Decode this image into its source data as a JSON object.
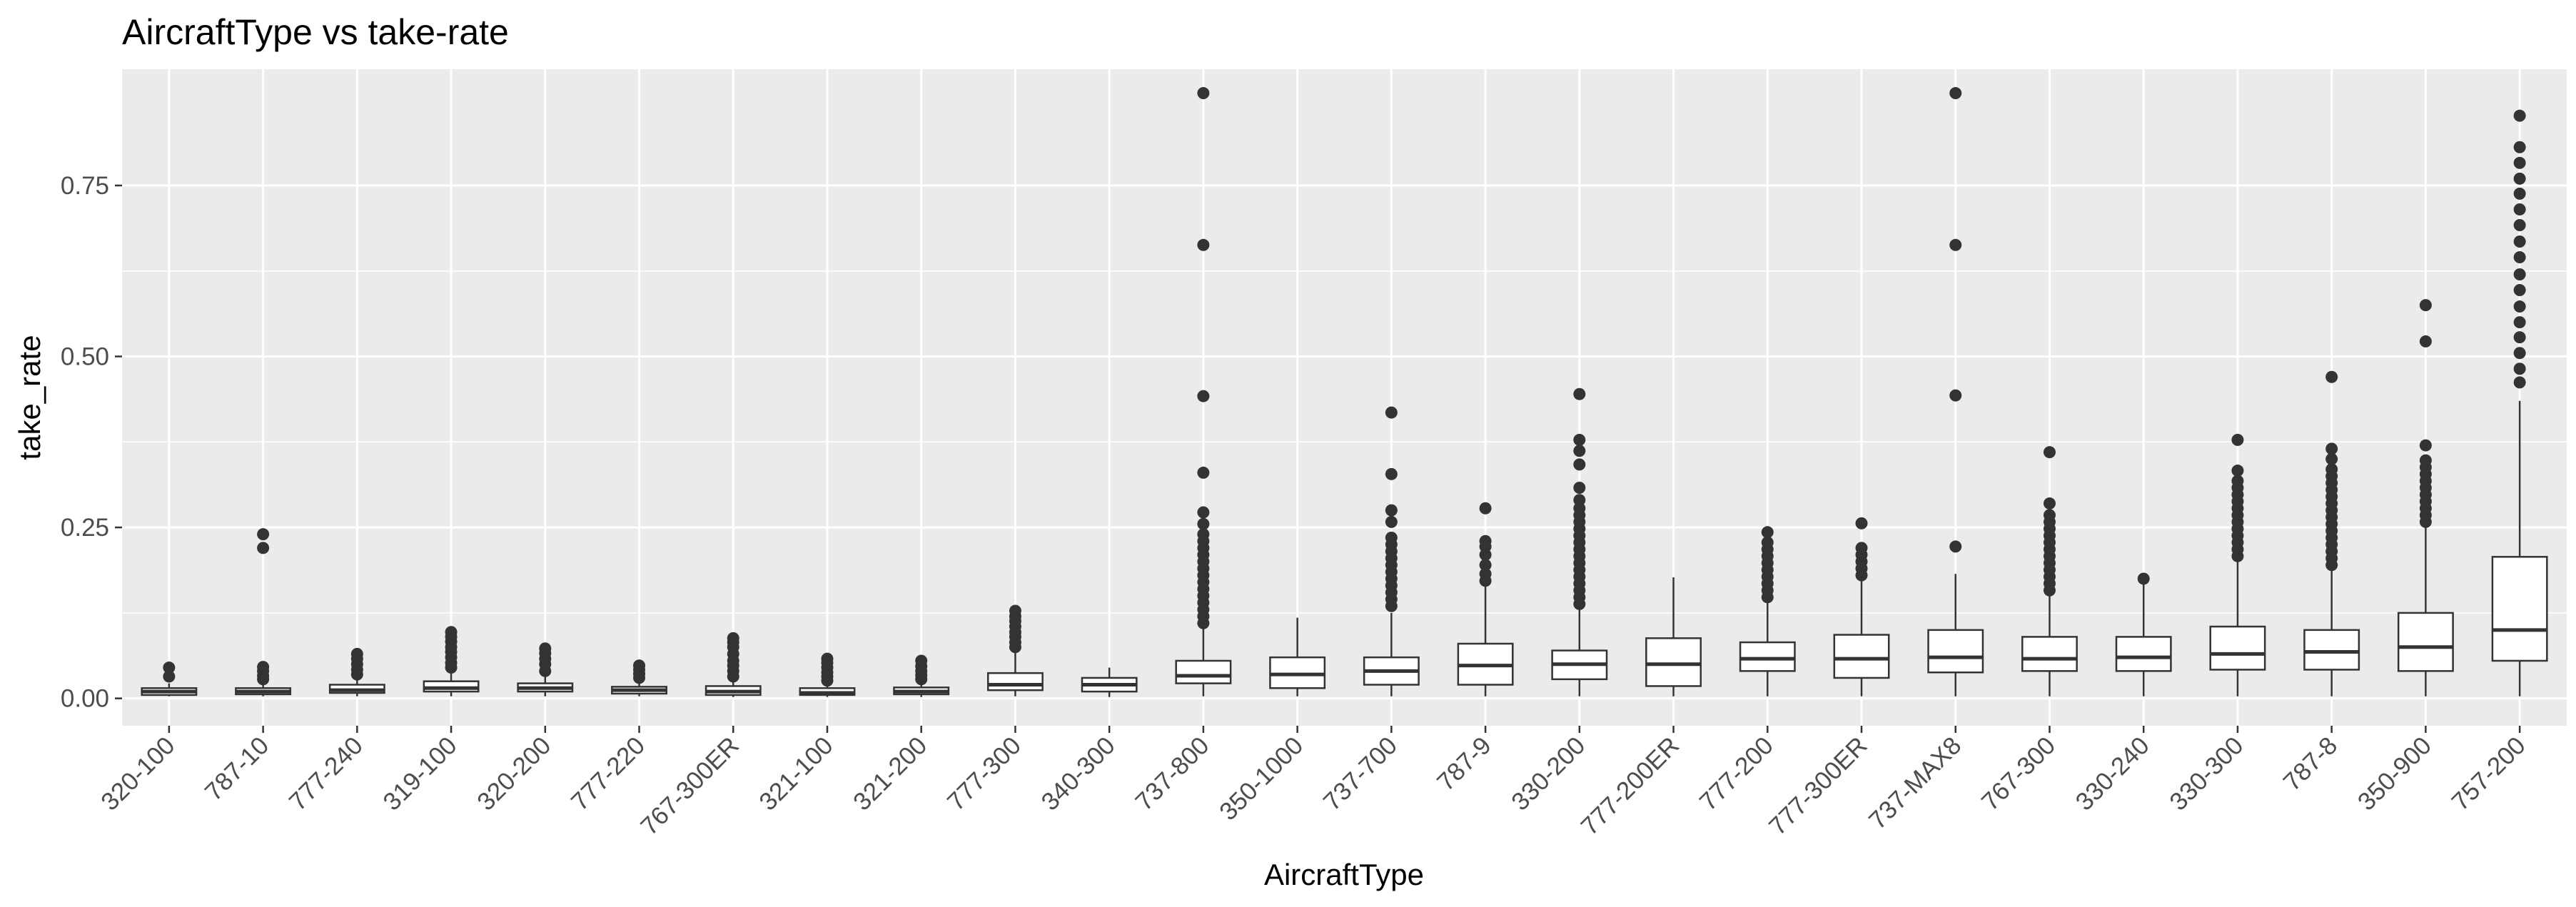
{
  "chart_data": {
    "type": "boxplot",
    "title": "AircraftType vs take-rate",
    "xlabel": "AircraftType",
    "ylabel": "take_rate",
    "ylim": [
      -0.04,
      0.92
    ],
    "yticks": [
      0.0,
      0.25,
      0.5,
      0.75
    ],
    "ytick_labels": [
      "0.00",
      "0.25",
      "0.50",
      "0.75"
    ],
    "grid": true,
    "legend": "none",
    "colors": {
      "panel_background": "#ebebeb",
      "grid_major": "#ffffff",
      "box_fill": "#ffffff",
      "box_line": "#333333",
      "outlier": "#333333"
    },
    "categories": [
      "320-100",
      "787-10",
      "777-240",
      "319-100",
      "320-200",
      "777-220",
      "767-300ER",
      "321-100",
      "321-200",
      "777-300",
      "340-300",
      "737-800",
      "350-1000",
      "737-700",
      "787-9",
      "330-200",
      "777-200ER",
      "777-200",
      "777-300ER",
      "737-MAX8",
      "767-300",
      "330-240",
      "330-300",
      "787-8",
      "350-900",
      "757-200"
    ],
    "boxes": [
      {
        "q1": 0.005,
        "median": 0.01,
        "q3": 0.015,
        "whisker_low": 0.003,
        "whisker_high": 0.022,
        "outliers": [
          0.032,
          0.045
        ]
      },
      {
        "q1": 0.006,
        "median": 0.01,
        "q3": 0.015,
        "whisker_low": 0.003,
        "whisker_high": 0.022,
        "outliers": [
          0.028,
          0.033,
          0.04,
          0.046,
          0.22,
          0.24
        ]
      },
      {
        "q1": 0.008,
        "median": 0.012,
        "q3": 0.02,
        "whisker_low": 0.003,
        "whisker_high": 0.03,
        "outliers": [
          0.035,
          0.042,
          0.05,
          0.058,
          0.065
        ]
      },
      {
        "q1": 0.01,
        "median": 0.015,
        "q3": 0.025,
        "whisker_low": 0.003,
        "whisker_high": 0.04,
        "outliers": [
          0.045,
          0.052,
          0.06,
          0.068,
          0.075,
          0.083,
          0.09,
          0.097
        ]
      },
      {
        "q1": 0.01,
        "median": 0.015,
        "q3": 0.022,
        "whisker_low": 0.003,
        "whisker_high": 0.033,
        "outliers": [
          0.04,
          0.05,
          0.058,
          0.066,
          0.073
        ]
      },
      {
        "q1": 0.007,
        "median": 0.012,
        "q3": 0.017,
        "whisker_low": 0.003,
        "whisker_high": 0.025,
        "outliers": [
          0.03,
          0.036,
          0.042,
          0.048
        ]
      },
      {
        "q1": 0.005,
        "median": 0.01,
        "q3": 0.018,
        "whisker_low": 0.002,
        "whisker_high": 0.028,
        "outliers": [
          0.032,
          0.04,
          0.048,
          0.055,
          0.065,
          0.075,
          0.082,
          0.088
        ]
      },
      {
        "q1": 0.005,
        "median": 0.008,
        "q3": 0.015,
        "whisker_low": 0.002,
        "whisker_high": 0.022,
        "outliers": [
          0.026,
          0.032,
          0.038,
          0.045,
          0.052,
          0.058
        ]
      },
      {
        "q1": 0.006,
        "median": 0.01,
        "q3": 0.016,
        "whisker_low": 0.002,
        "whisker_high": 0.024,
        "outliers": [
          0.028,
          0.034,
          0.04,
          0.047,
          0.055
        ]
      },
      {
        "q1": 0.012,
        "median": 0.02,
        "q3": 0.037,
        "whisker_low": 0.003,
        "whisker_high": 0.07,
        "outliers": [
          0.075,
          0.082,
          0.09,
          0.097,
          0.105,
          0.113,
          0.12,
          0.128
        ]
      },
      {
        "q1": 0.01,
        "median": 0.02,
        "q3": 0.03,
        "whisker_low": 0.002,
        "whisker_high": 0.045,
        "outliers": []
      },
      {
        "q1": 0.022,
        "median": 0.033,
        "q3": 0.055,
        "whisker_low": 0.003,
        "whisker_high": 0.103,
        "outliers": [
          0.11,
          0.12,
          0.13,
          0.14,
          0.15,
          0.16,
          0.17,
          0.18,
          0.19,
          0.2,
          0.21,
          0.22,
          0.23,
          0.24,
          0.255,
          0.272,
          0.33,
          0.442,
          0.663,
          0.885
        ]
      },
      {
        "q1": 0.015,
        "median": 0.035,
        "q3": 0.06,
        "whisker_low": 0.003,
        "whisker_high": 0.118,
        "outliers": []
      },
      {
        "q1": 0.02,
        "median": 0.04,
        "q3": 0.06,
        "whisker_low": 0.003,
        "whisker_high": 0.125,
        "outliers": [
          0.135,
          0.145,
          0.155,
          0.165,
          0.175,
          0.185,
          0.195,
          0.205,
          0.215,
          0.225,
          0.235,
          0.258,
          0.275,
          0.328,
          0.418
        ]
      },
      {
        "q1": 0.02,
        "median": 0.048,
        "q3": 0.08,
        "whisker_low": 0.003,
        "whisker_high": 0.165,
        "outliers": [
          0.172,
          0.182,
          0.195,
          0.21,
          0.222,
          0.23,
          0.278
        ]
      },
      {
        "q1": 0.028,
        "median": 0.05,
        "q3": 0.07,
        "whisker_low": 0.003,
        "whisker_high": 0.13,
        "outliers": [
          0.138,
          0.148,
          0.158,
          0.168,
          0.178,
          0.188,
          0.198,
          0.208,
          0.218,
          0.228,
          0.238,
          0.248,
          0.258,
          0.268,
          0.278,
          0.29,
          0.308,
          0.342,
          0.362,
          0.378,
          0.445
        ]
      },
      {
        "q1": 0.018,
        "median": 0.05,
        "q3": 0.088,
        "whisker_low": 0.003,
        "whisker_high": 0.177,
        "outliers": []
      },
      {
        "q1": 0.04,
        "median": 0.058,
        "q3": 0.082,
        "whisker_low": 0.003,
        "whisker_high": 0.14,
        "outliers": [
          0.148,
          0.158,
          0.168,
          0.178,
          0.188,
          0.198,
          0.208,
          0.218,
          0.228,
          0.243
        ]
      },
      {
        "q1": 0.03,
        "median": 0.058,
        "q3": 0.093,
        "whisker_low": 0.003,
        "whisker_high": 0.172,
        "outliers": [
          0.18,
          0.19,
          0.2,
          0.21,
          0.22,
          0.256
        ]
      },
      {
        "q1": 0.038,
        "median": 0.06,
        "q3": 0.1,
        "whisker_low": 0.003,
        "whisker_high": 0.182,
        "outliers": [
          0.222,
          0.443,
          0.663,
          0.885
        ]
      },
      {
        "q1": 0.04,
        "median": 0.058,
        "q3": 0.09,
        "whisker_low": 0.003,
        "whisker_high": 0.15,
        "outliers": [
          0.158,
          0.168,
          0.178,
          0.188,
          0.198,
          0.208,
          0.218,
          0.228,
          0.238,
          0.248,
          0.258,
          0.268,
          0.285,
          0.36
        ]
      },
      {
        "q1": 0.04,
        "median": 0.06,
        "q3": 0.09,
        "whisker_low": 0.003,
        "whisker_high": 0.17,
        "outliers": [
          0.175
        ]
      },
      {
        "q1": 0.042,
        "median": 0.065,
        "q3": 0.105,
        "whisker_low": 0.003,
        "whisker_high": 0.2,
        "outliers": [
          0.208,
          0.218,
          0.228,
          0.238,
          0.248,
          0.258,
          0.268,
          0.278,
          0.288,
          0.298,
          0.308,
          0.318,
          0.333,
          0.378
        ]
      },
      {
        "q1": 0.042,
        "median": 0.068,
        "q3": 0.1,
        "whisker_low": 0.003,
        "whisker_high": 0.188,
        "outliers": [
          0.195,
          0.205,
          0.215,
          0.225,
          0.235,
          0.245,
          0.255,
          0.265,
          0.275,
          0.285,
          0.295,
          0.305,
          0.315,
          0.325,
          0.335,
          0.35,
          0.365,
          0.47
        ]
      },
      {
        "q1": 0.04,
        "median": 0.075,
        "q3": 0.125,
        "whisker_low": 0.003,
        "whisker_high": 0.25,
        "outliers": [
          0.258,
          0.268,
          0.278,
          0.288,
          0.298,
          0.308,
          0.318,
          0.328,
          0.338,
          0.348,
          0.37,
          0.522,
          0.575
        ]
      },
      {
        "q1": 0.055,
        "median": 0.1,
        "q3": 0.207,
        "whisker_low": 0.003,
        "whisker_high": 0.435,
        "outliers": [
          0.462,
          0.482,
          0.505,
          0.528,
          0.55,
          0.573,
          0.597,
          0.62,
          0.645,
          0.668,
          0.692,
          0.715,
          0.738,
          0.76,
          0.783,
          0.806,
          0.852
        ]
      }
    ]
  }
}
